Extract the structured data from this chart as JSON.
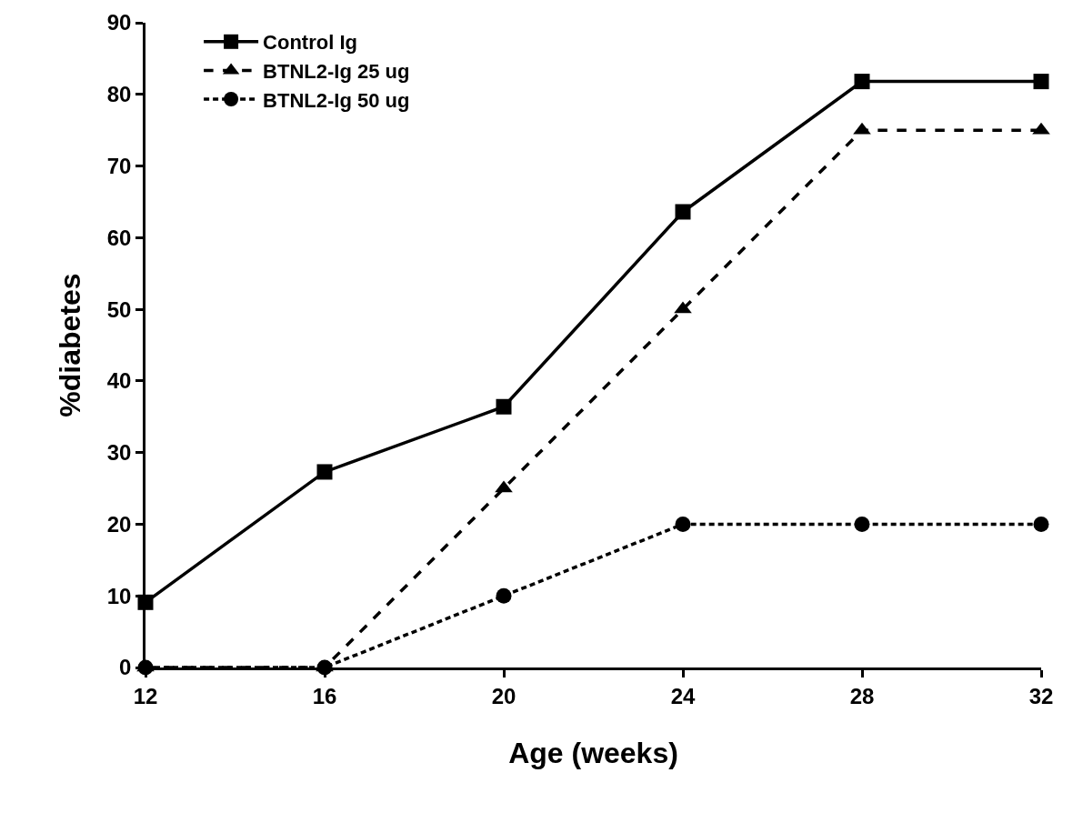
{
  "chart_data": {
    "type": "line",
    "xlabel": "Age (weeks)",
    "ylabel": "%diabetes",
    "x": [
      12,
      16,
      20,
      24,
      28,
      32
    ],
    "series": [
      {
        "name": "Control Ig",
        "color": "#000000",
        "marker": "square",
        "line_style": "solid",
        "values": [
          9.1,
          27.3,
          36.4,
          63.6,
          81.8,
          81.8
        ]
      },
      {
        "name": "BTNL2-Ig 25 ug",
        "color": "#000000",
        "marker": "triangle",
        "line_style": "dashed",
        "values": [
          0,
          0,
          25,
          50,
          75,
          75
        ]
      },
      {
        "name": "BTNL2-Ig 50 ug",
        "color": "#000000",
        "marker": "circle",
        "line_style": "dotted",
        "values": [
          0,
          0,
          10,
          20,
          20,
          20
        ]
      }
    ],
    "xlim": [
      12,
      32
    ],
    "xticks": [
      12,
      16,
      20,
      24,
      28,
      32
    ],
    "ylim": [
      0,
      90
    ],
    "yticks": [
      0,
      10,
      20,
      30,
      40,
      50,
      60,
      70,
      80,
      90
    ],
    "legend": "top left"
  }
}
